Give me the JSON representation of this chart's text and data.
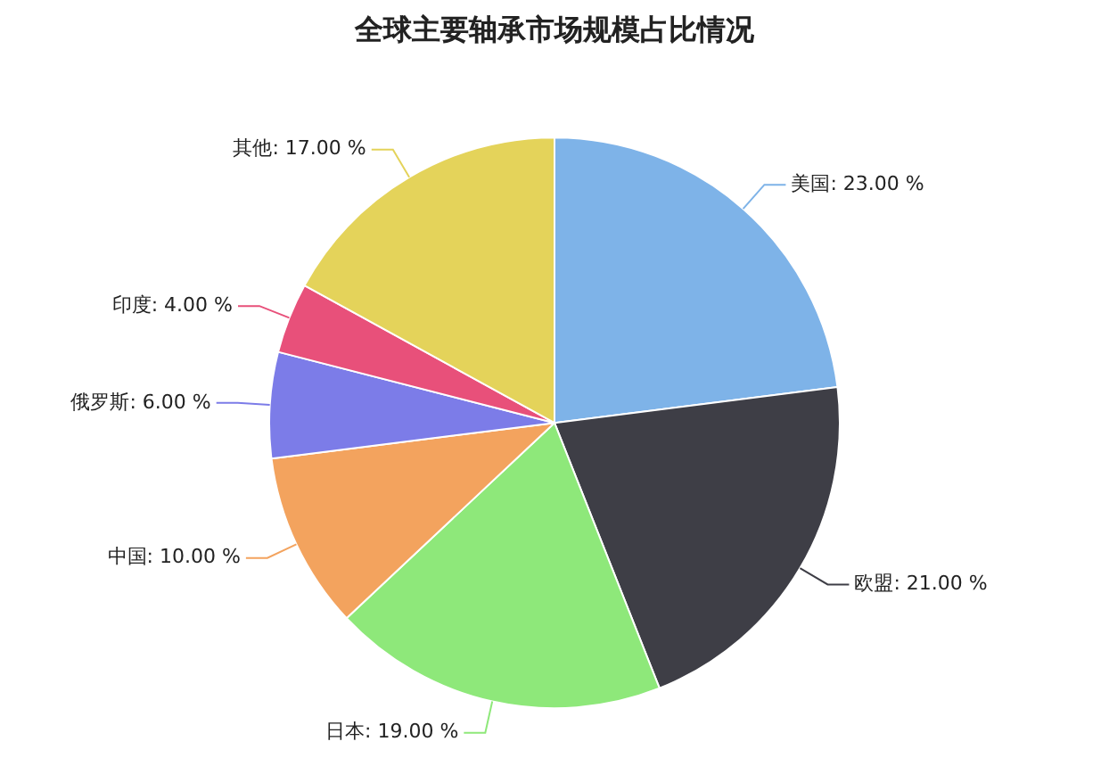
{
  "chart_data": {
    "type": "pie",
    "title": "全球主要轴承市场规模占比情况",
    "categories": [
      "美国",
      "欧盟",
      "日本",
      "中国",
      "俄罗斯",
      "印度",
      "其他"
    ],
    "values": [
      23,
      21,
      19,
      10,
      6,
      4,
      17
    ],
    "value_labels": [
      "23.00 %",
      "21.00 %",
      "19.00 %",
      "10.00 %",
      "6.00 %",
      "4.00 %",
      "17.00 %"
    ],
    "colors": [
      "#7eb3e8",
      "#3e3e46",
      "#8ee87a",
      "#f3a35e",
      "#7c7ce8",
      "#e8507a",
      "#e4d35a"
    ],
    "legend": false
  }
}
